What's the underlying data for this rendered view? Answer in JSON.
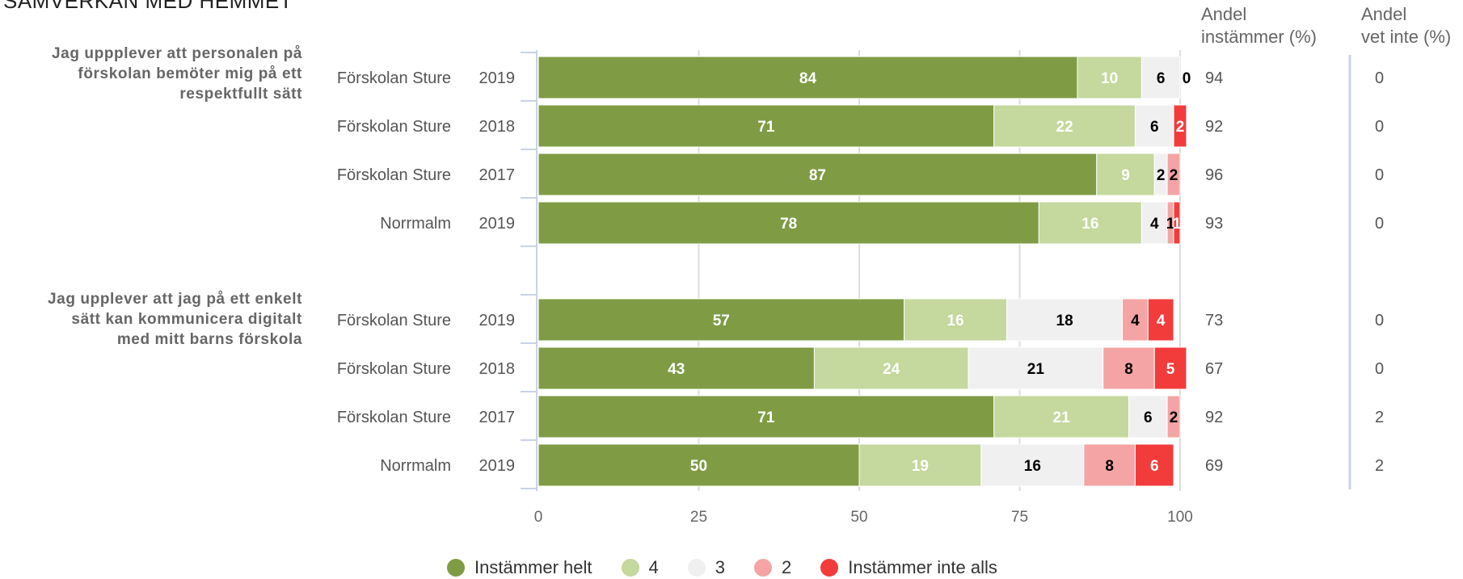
{
  "title": "SAMVERKAN MED HEMMET",
  "columns": {
    "andel_instammer": [
      "Andel",
      "instämmer (%)"
    ],
    "andel_vet_inte": [
      "Andel",
      "vet inte (%)"
    ]
  },
  "colors": {
    "instammer_helt": "#7f9c45",
    "c4": "#c5d89d",
    "c3": "#f0f0f0",
    "c2": "#f4a4a4",
    "instammer_inte_alls": "#f23c3c"
  },
  "chart_data": {
    "type": "bar",
    "orientation": "horizontal",
    "stacked": true,
    "xlim": [
      0,
      100
    ],
    "xticks": [
      0,
      25,
      50,
      75,
      100
    ],
    "series_names": [
      "Instämmer helt",
      "4",
      "3",
      "2",
      "Instämmer inte alls"
    ],
    "groups": [
      {
        "question": [
          "Jag uppplever att personalen på",
          "förskolan bemöter mig på ett",
          "respektfullt sätt"
        ],
        "rows": [
          {
            "unit": "Förskolan Sture",
            "year": "2019",
            "values": [
              84,
              10,
              6,
              0,
              0
            ],
            "labels": [
              "84",
              "10",
              "6",
              "0",
              ""
            ],
            "andel_instammer": "94",
            "vet_inte": "0"
          },
          {
            "unit": "Förskolan Sture",
            "year": "2018",
            "values": [
              71,
              22,
              6,
              0,
              2
            ],
            "labels": [
              "71",
              "22",
              "6",
              "0",
              "2"
            ],
            "andel_instammer": "92",
            "vet_inte": "0"
          },
          {
            "unit": "Förskolan Sture",
            "year": "2017",
            "values": [
              87,
              9,
              2,
              2,
              0
            ],
            "labels": [
              "87",
              "9",
              "2",
              "2",
              ""
            ],
            "andel_instammer": "96",
            "vet_inte": "0"
          },
          {
            "unit": "Norrmalm",
            "year": "2019",
            "values": [
              78,
              16,
              4,
              1,
              1
            ],
            "labels": [
              "78",
              "16",
              "4",
              "1",
              "1"
            ],
            "andel_instammer": "93",
            "vet_inte": "0"
          }
        ]
      },
      {
        "question": [
          "Jag upplever att jag på ett enkelt",
          "sätt kan kommunicera digitalt",
          "med mitt barns förskola"
        ],
        "rows": [
          {
            "unit": "Förskolan Sture",
            "year": "2019",
            "values": [
              57,
              16,
              18,
              4,
              4
            ],
            "labels": [
              "57",
              "16",
              "18",
              "4",
              "4"
            ],
            "andel_instammer": "73",
            "vet_inte": "0"
          },
          {
            "unit": "Förskolan Sture",
            "year": "2018",
            "values": [
              43,
              24,
              21,
              8,
              5
            ],
            "labels": [
              "43",
              "24",
              "21",
              "8",
              "5"
            ],
            "andel_instammer": "67",
            "vet_inte": "0"
          },
          {
            "unit": "Förskolan Sture",
            "year": "2017",
            "values": [
              71,
              21,
              6,
              2,
              0
            ],
            "labels": [
              "71",
              "21",
              "6",
              "2",
              ""
            ],
            "andel_instammer": "92",
            "vet_inte": "2"
          },
          {
            "unit": "Norrmalm",
            "year": "2019",
            "values": [
              50,
              19,
              16,
              8,
              6
            ],
            "labels": [
              "50",
              "19",
              "16",
              "8",
              "6"
            ],
            "andel_instammer": "69",
            "vet_inte": "2"
          }
        ]
      }
    ],
    "legend": {
      "position": "bottom",
      "items": [
        "Instämmer helt",
        "4",
        "3",
        "2",
        "Instämmer inte alls"
      ]
    },
    "grid": true
  }
}
